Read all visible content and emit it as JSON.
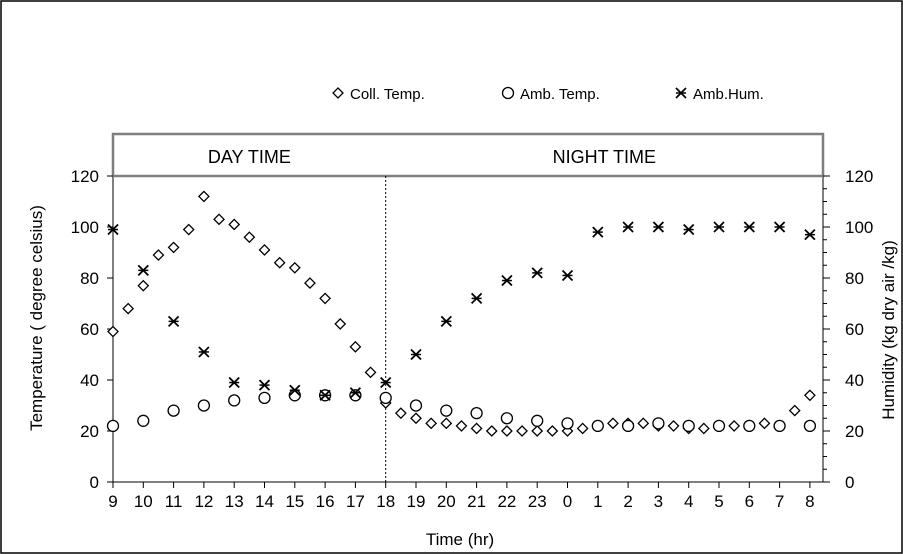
{
  "chart_data": {
    "type": "scatter",
    "title": "",
    "xlabel": "Time (hr)",
    "ylabel_left": "Temperature ( degree celsius)",
    "ylabel_right": "Humidity (kg dry air /kg)",
    "x_tick_labels": [
      "9",
      "10",
      "11",
      "12",
      "13",
      "14",
      "15",
      "16",
      "17",
      "18",
      "19",
      "20",
      "21",
      "22",
      "23",
      "0",
      "1",
      "2",
      "3",
      "4",
      "5",
      "6",
      "7",
      "8"
    ],
    "y_left_ticks": [
      "0",
      "20",
      "40",
      "60",
      "80",
      "100",
      "120"
    ],
    "y_right_ticks": [
      "0",
      "20",
      "40",
      "60",
      "80",
      "100",
      "120"
    ],
    "ylim_left": [
      0,
      120
    ],
    "ylim_right": [
      0,
      120
    ],
    "xlim": [
      9,
      32.5
    ],
    "legend": {
      "placement": "top-center"
    },
    "regions": [
      {
        "label": "DAY TIME",
        "x_start": 9,
        "x_end": 18
      },
      {
        "label": "NIGHT TIME",
        "x_start": 18,
        "x_end": 32.5
      }
    ],
    "divider_x": 18,
    "series": [
      {
        "name": "Coll. Temp.",
        "marker": "diamond",
        "axis": "left",
        "x": [
          9,
          9.5,
          10,
          10.5,
          11,
          11.5,
          12,
          12.5,
          13,
          13.5,
          14,
          14.5,
          15,
          15.5,
          16,
          16.5,
          17,
          17.5,
          18,
          18.5,
          19,
          19.5,
          20,
          20.5,
          21,
          21.5,
          22,
          22.5,
          23,
          23.5,
          24,
          24.5,
          25,
          25.5,
          26,
          26.5,
          27,
          27.5,
          28,
          28.5,
          29,
          29.5,
          30,
          30.5,
          31,
          31.5,
          32
        ],
        "y": [
          59,
          68,
          77,
          89,
          92,
          99,
          112,
          103,
          101,
          96,
          91,
          86,
          84,
          78,
          72,
          62,
          53,
          43,
          31,
          27,
          25,
          23,
          23,
          22,
          21,
          20,
          20,
          20,
          20,
          20,
          20,
          21,
          22,
          23,
          23,
          23,
          22,
          22,
          21,
          21,
          22,
          22,
          22,
          23,
          22,
          28,
          34
        ]
      },
      {
        "name": "Amb. Temp.",
        "marker": "circle",
        "axis": "left",
        "x": [
          9,
          10,
          11,
          12,
          13,
          14,
          15,
          16,
          17,
          18,
          19,
          20,
          21,
          22,
          23,
          24,
          25,
          26,
          27,
          28,
          29,
          30,
          31,
          32
        ],
        "y": [
          22,
          24,
          28,
          30,
          32,
          33,
          34,
          34,
          34,
          33,
          30,
          28,
          27,
          25,
          24,
          23,
          22,
          22,
          23,
          22,
          22,
          22,
          22,
          22
        ]
      },
      {
        "name": "Amb.Hum.",
        "marker": "asterisk",
        "axis": "right",
        "x": [
          9,
          10,
          11,
          12,
          13,
          14,
          15,
          16,
          17,
          18,
          19,
          20,
          21,
          22,
          23,
          24,
          25,
          26,
          27,
          28,
          29,
          30,
          31,
          32
        ],
        "y": [
          99,
          83,
          63,
          51,
          39,
          38,
          36,
          34,
          35,
          39,
          50,
          63,
          72,
          79,
          82,
          81,
          98,
          100,
          100,
          99,
          100,
          100,
          100,
          97
        ]
      }
    ]
  }
}
